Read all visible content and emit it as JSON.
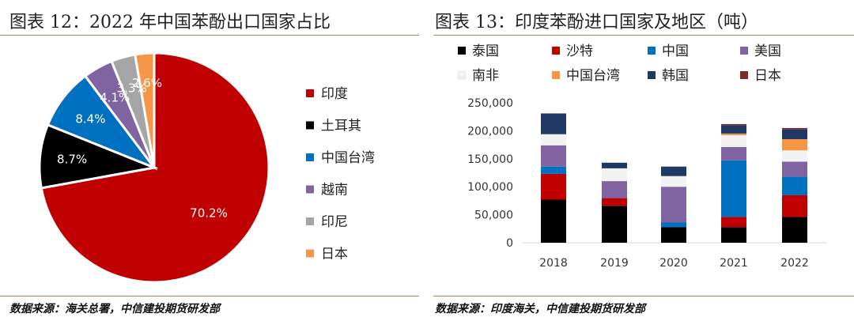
{
  "left": {
    "title": "图表 12：2022 年中国苯酚出口国家占比",
    "source": "数据来源：海关总署，中信建投期货研发部"
  },
  "right": {
    "title": "图表 13：印度苯酚进口国家及地区（吨）",
    "source": "数据来源：印度海关，中信建投期货研发部"
  },
  "chart_data": [
    {
      "type": "pie",
      "slices": [
        {
          "name": "印度",
          "value": 70.2,
          "label": "70.2%",
          "color": "#c00000"
        },
        {
          "name": "土耳其",
          "value": 8.7,
          "label": "8.7%",
          "color": "#000000"
        },
        {
          "name": "中国台湾",
          "value": 8.4,
          "label": "8.4%",
          "color": "#0070c0"
        },
        {
          "name": "越南",
          "value": 4.1,
          "label": "4.1%",
          "color": "#8064a2"
        },
        {
          "name": "印尼",
          "value": 3.3,
          "label": "3.3%",
          "color": "#a5a5a5"
        },
        {
          "name": "日本",
          "value": 2.6,
          "label": "2.6%",
          "color": "#f79646"
        }
      ],
      "legend": [
        "印度",
        "土耳其",
        "中国台湾",
        "越南",
        "印尼",
        "日本"
      ],
      "legend_position": "right"
    },
    {
      "type": "bar",
      "stacked": true,
      "categories": [
        "2018",
        "2019",
        "2020",
        "2021",
        "2022"
      ],
      "ylim": [
        0,
        250000
      ],
      "yticks": [
        "0",
        "50,000",
        "100,000",
        "150,000",
        "200,000",
        "250,000"
      ],
      "legend_position": "top",
      "series": [
        {
          "name": "泰国",
          "color": "#000000",
          "values": [
            77000,
            66000,
            28000,
            28000,
            46000
          ]
        },
        {
          "name": "沙特",
          "color": "#c00000",
          "values": [
            46000,
            14000,
            0,
            18000,
            39000
          ]
        },
        {
          "name": "中国",
          "color": "#0070c0",
          "values": [
            13000,
            0,
            8000,
            101000,
            33000
          ]
        },
        {
          "name": "美国",
          "color": "#8064a2",
          "values": [
            38000,
            30000,
            64000,
            24000,
            27000
          ]
        },
        {
          "name": "南非",
          "color": "#f2f2f2",
          "values": [
            20000,
            23000,
            19000,
            21000,
            20000
          ]
        },
        {
          "name": "中国台湾",
          "color": "#f79646",
          "values": [
            0,
            0,
            0,
            3000,
            20000
          ]
        },
        {
          "name": "韩国",
          "color": "#1f3864",
          "values": [
            37000,
            10000,
            17000,
            15000,
            18000
          ]
        },
        {
          "name": "日本",
          "color": "#7f2a2a",
          "values": [
            0,
            0,
            0,
            2000,
            2000
          ]
        }
      ]
    }
  ]
}
